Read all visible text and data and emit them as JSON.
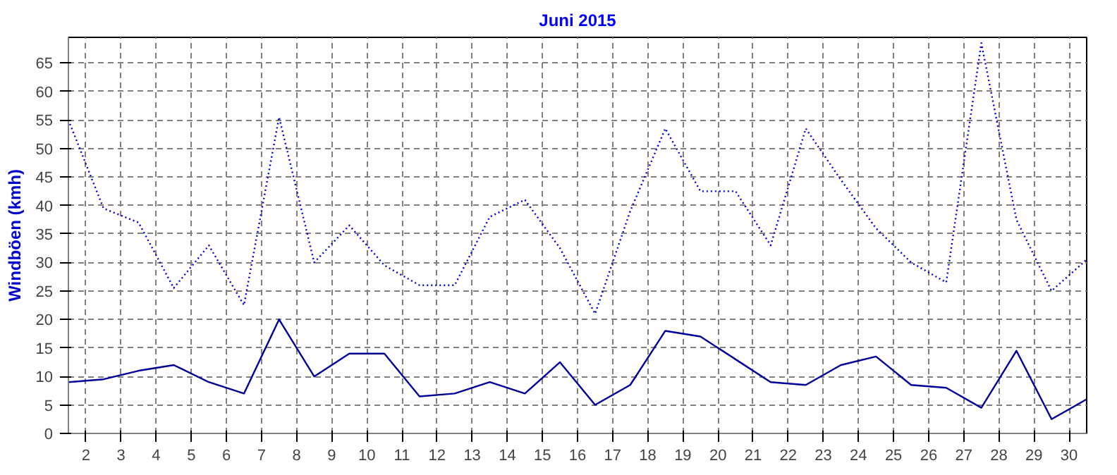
{
  "chart_data": {
    "type": "line",
    "title": "Juni 2015",
    "ylabel": "Windböen (kmh)",
    "x": [
      1.5,
      2.5,
      3.5,
      4.5,
      5.5,
      6.5,
      7.5,
      8.5,
      9.5,
      10.5,
      11.5,
      12.5,
      13.5,
      14.5,
      15.5,
      16.5,
      17.5,
      18.5,
      19.5,
      20.5,
      21.5,
      22.5,
      23.5,
      24.5,
      25.5,
      26.5,
      27.5,
      28.5,
      29.5,
      30.5
    ],
    "series": [
      {
        "color": "#0000cc",
        "line_style": "dotted",
        "values": [
          55,
          39.5,
          37,
          25.5,
          33,
          22.5,
          55.5,
          30,
          36.5,
          29.5,
          26,
          26,
          38,
          41,
          32.5,
          21,
          39,
          53.5,
          42.5,
          42.5,
          33,
          53.5,
          44.5,
          36,
          30,
          26.5,
          68.5,
          37.5,
          25,
          30.5
        ]
      },
      {
        "color": "#000099",
        "line_style": "solid",
        "values": [
          9,
          9.5,
          11,
          12,
          9,
          7,
          20,
          10,
          14,
          14,
          6.5,
          7,
          9,
          7,
          12.5,
          5,
          8.5,
          18,
          17,
          13,
          9,
          8.5,
          12,
          13.5,
          8.5,
          8,
          4.5,
          14.5,
          2.5,
          6
        ]
      }
    ],
    "xlim": [
      1.5,
      30.5
    ],
    "ylim": [
      0,
      69.5
    ],
    "xticks": [
      2,
      3,
      4,
      5,
      6,
      7,
      8,
      9,
      10,
      11,
      12,
      13,
      14,
      15,
      16,
      17,
      18,
      19,
      20,
      21,
      22,
      23,
      24,
      25,
      26,
      27,
      28,
      29,
      30
    ],
    "yticks": [
      0,
      5,
      10,
      15,
      20,
      25,
      30,
      35,
      40,
      45,
      50,
      55,
      60,
      65
    ],
    "grid": true
  }
}
